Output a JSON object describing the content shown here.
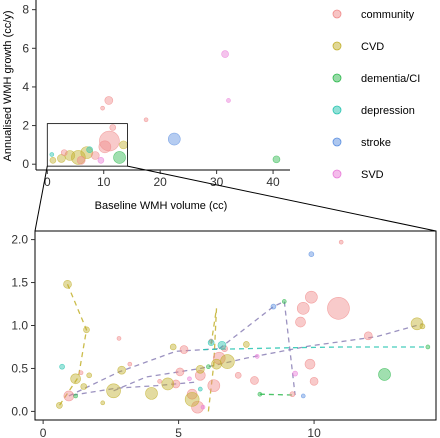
{
  "chart_data": [
    {
      "type": "scatter",
      "xlabel": "Baseline WMH volume (cc)",
      "ylabel": "Annualised WMH growth (cc/y)",
      "xlim": [
        -2,
        43
      ],
      "ylim": [
        -0.3,
        8.5
      ],
      "x_ticks": [
        "0",
        "10",
        "20",
        "30",
        "40"
      ],
      "y_ticks": [
        "0",
        "2",
        "4",
        "6",
        "8"
      ],
      "zoom_box": {
        "x": [
          0,
          14.2
        ],
        "y": [
          -0.1,
          2.1
        ]
      },
      "legend_position": "right",
      "legend": [
        {
          "name": "community",
          "color": "#f08a8a"
        },
        {
          "name": "CVD",
          "color": "#c2b02c"
        },
        {
          "name": "dementia/CI",
          "color": "#2db84d"
        },
        {
          "name": "depression",
          "color": "#26c4b0"
        },
        {
          "name": "stroke",
          "color": "#5b8fe0"
        },
        {
          "name": "SVD",
          "color": "#e97ad8"
        }
      ],
      "points": [
        {
          "x": 10.9,
          "y": 3.3,
          "r": 4,
          "g": "community"
        },
        {
          "x": 9.8,
          "y": 2.9,
          "r": 2,
          "g": "community"
        },
        {
          "x": 11.6,
          "y": 1.9,
          "r": 3,
          "g": "community"
        },
        {
          "x": 17.5,
          "y": 2.3,
          "r": 2,
          "g": "community"
        },
        {
          "x": 31.5,
          "y": 5.7,
          "r": 3.5,
          "g": "SVD"
        },
        {
          "x": 32.1,
          "y": 3.3,
          "r": 2,
          "g": "SVD"
        },
        {
          "x": 22.5,
          "y": 1.3,
          "r": 6,
          "g": "stroke"
        },
        {
          "x": 40.6,
          "y": 0.25,
          "r": 3.5,
          "g": "dementia/CI"
        },
        {
          "x": 12.8,
          "y": 0.35,
          "r": 6,
          "g": "dementia/CI"
        },
        {
          "x": 11.0,
          "y": 1.2,
          "r": 10,
          "g": "community"
        },
        {
          "x": 10.2,
          "y": 0.9,
          "r": 6,
          "g": "community"
        },
        {
          "x": 4.0,
          "y": 0.45,
          "r": 5,
          "g": "CVD"
        },
        {
          "x": 5.5,
          "y": 0.35,
          "r": 7,
          "g": "CVD"
        },
        {
          "x": 7.0,
          "y": 0.6,
          "r": 6,
          "g": "CVD"
        },
        {
          "x": 2.5,
          "y": 0.3,
          "r": 4,
          "g": "CVD"
        },
        {
          "x": 1.0,
          "y": 0.2,
          "r": 3,
          "g": "CVD"
        },
        {
          "x": 13.5,
          "y": 1.0,
          "r": 4,
          "g": "CVD"
        },
        {
          "x": 3.0,
          "y": 0.6,
          "r": 3,
          "g": "community"
        },
        {
          "x": 6.0,
          "y": 0.2,
          "r": 4,
          "g": "community"
        },
        {
          "x": 8.5,
          "y": 0.45,
          "r": 4,
          "g": "community"
        },
        {
          "x": 9.5,
          "y": 0.2,
          "r": 3,
          "g": "SVD"
        },
        {
          "x": 7.5,
          "y": 0.75,
          "r": 3,
          "g": "depression"
        },
        {
          "x": 0.8,
          "y": 0.5,
          "r": 2,
          "g": "depression"
        }
      ]
    },
    {
      "type": "scatter",
      "xlabel": "",
      "ylabel": "",
      "xlim": [
        -0.3,
        14.5
      ],
      "ylim": [
        -0.1,
        2.1
      ],
      "x_ticks": [
        "0",
        "5",
        "10"
      ],
      "y_ticks": [
        "0.0",
        "0.5",
        "1.0",
        "1.5",
        "2.0"
      ],
      "points": [
        {
          "x": 10.9,
          "y": 1.2,
          "r": 11,
          "g": "community"
        },
        {
          "x": 9.9,
          "y": 1.33,
          "r": 6,
          "g": "community"
        },
        {
          "x": 9.6,
          "y": 1.2,
          "r": 6,
          "g": "community"
        },
        {
          "x": 9.5,
          "y": 1.04,
          "r": 5,
          "g": "community"
        },
        {
          "x": 9.85,
          "y": 0.55,
          "r": 5,
          "g": "community"
        },
        {
          "x": 10.0,
          "y": 0.35,
          "r": 4,
          "g": "community"
        },
        {
          "x": 11.0,
          "y": 1.97,
          "r": 2,
          "g": "community"
        },
        {
          "x": 6.5,
          "y": 0.62,
          "r": 6,
          "g": "community"
        },
        {
          "x": 6.3,
          "y": 0.3,
          "r": 6,
          "g": "community"
        },
        {
          "x": 5.7,
          "y": 0.05,
          "r": 6,
          "g": "community"
        },
        {
          "x": 5.5,
          "y": 0.2,
          "r": 5,
          "g": "community"
        },
        {
          "x": 5.8,
          "y": 0.42,
          "r": 5,
          "g": "community"
        },
        {
          "x": 5.2,
          "y": 0.72,
          "r": 4,
          "g": "community"
        },
        {
          "x": 5.05,
          "y": 0.46,
          "r": 4,
          "g": "community"
        },
        {
          "x": 4.9,
          "y": 0.32,
          "r": 4,
          "g": "community"
        },
        {
          "x": 6.2,
          "y": 0.82,
          "r": 2,
          "g": "community"
        },
        {
          "x": 6.7,
          "y": 0.73,
          "r": 3,
          "g": "community"
        },
        {
          "x": 7.8,
          "y": 0.36,
          "r": 4,
          "g": "community"
        },
        {
          "x": 7.2,
          "y": 0.42,
          "r": 3,
          "g": "community"
        },
        {
          "x": 9.2,
          "y": 0.2,
          "r": 2.5,
          "g": "community"
        },
        {
          "x": 12.0,
          "y": 0.88,
          "r": 4,
          "g": "community"
        },
        {
          "x": 2.8,
          "y": 0.85,
          "r": 2,
          "g": "community"
        },
        {
          "x": 1.4,
          "y": 0.45,
          "r": 2,
          "g": "community"
        },
        {
          "x": 0.95,
          "y": 0.18,
          "r": 5,
          "g": "community"
        },
        {
          "x": 3.2,
          "y": 0.55,
          "r": 2,
          "g": "community"
        },
        {
          "x": 4.3,
          "y": 0.35,
          "r": 2,
          "g": "community"
        },
        {
          "x": 2.6,
          "y": 0.24,
          "r": 7,
          "g": "CVD"
        },
        {
          "x": 4.0,
          "y": 0.21,
          "r": 6,
          "g": "CVD"
        },
        {
          "x": 4.6,
          "y": 0.32,
          "r": 6,
          "g": "CVD"
        },
        {
          "x": 5.5,
          "y": 0.14,
          "r": 7,
          "g": "CVD"
        },
        {
          "x": 6.4,
          "y": 0.55,
          "r": 5,
          "g": "CVD"
        },
        {
          "x": 6.8,
          "y": 0.58,
          "r": 7,
          "g": "CVD"
        },
        {
          "x": 5.8,
          "y": 0.49,
          "r": 4,
          "g": "CVD"
        },
        {
          "x": 2.9,
          "y": 0.48,
          "r": 4,
          "g": "CVD"
        },
        {
          "x": 1.5,
          "y": 0.29,
          "r": 3,
          "g": "CVD"
        },
        {
          "x": 1.2,
          "y": 0.38,
          "r": 5,
          "g": "CVD"
        },
        {
          "x": 0.6,
          "y": 0.07,
          "r": 3,
          "g": "CVD"
        },
        {
          "x": 0.9,
          "y": 1.48,
          "r": 4,
          "g": "CVD"
        },
        {
          "x": 1.6,
          "y": 0.95,
          "r": 3,
          "g": "CVD"
        },
        {
          "x": 4.8,
          "y": 0.75,
          "r": 3,
          "g": "CVD"
        },
        {
          "x": 7.5,
          "y": 0.78,
          "r": 3,
          "g": "CVD"
        },
        {
          "x": 13.8,
          "y": 1.02,
          "r": 6,
          "g": "CVD"
        },
        {
          "x": 14.0,
          "y": 0.99,
          "r": 2.5,
          "g": "CVD"
        },
        {
          "x": 1.7,
          "y": 0.42,
          "r": 2.5,
          "g": "CVD"
        },
        {
          "x": 2.2,
          "y": 0.1,
          "r": 2,
          "g": "CVD"
        },
        {
          "x": 12.6,
          "y": 0.43,
          "r": 6,
          "g": "dementia/CI"
        },
        {
          "x": 14.2,
          "y": 0.75,
          "r": 2,
          "g": "dementia/CI"
        },
        {
          "x": 1.2,
          "y": 0.18,
          "r": 2,
          "g": "dementia/CI"
        },
        {
          "x": 6.1,
          "y": 0.52,
          "r": 2,
          "g": "dementia/CI"
        },
        {
          "x": 8.9,
          "y": 1.28,
          "r": 2,
          "g": "dementia/CI"
        },
        {
          "x": 8.0,
          "y": 0.2,
          "r": 2,
          "g": "dementia/CI"
        },
        {
          "x": 6.6,
          "y": 0.77,
          "r": 4,
          "g": "depression"
        },
        {
          "x": 6.2,
          "y": 0.8,
          "r": 3,
          "g": "depression"
        },
        {
          "x": 0.7,
          "y": 0.52,
          "r": 2.5,
          "g": "depression"
        },
        {
          "x": 5.8,
          "y": 0.26,
          "r": 2,
          "g": "depression"
        },
        {
          "x": 9.9,
          "y": 1.83,
          "r": 2.5,
          "g": "stroke"
        },
        {
          "x": 8.5,
          "y": 1.22,
          "r": 2.5,
          "g": "stroke"
        },
        {
          "x": 9.6,
          "y": 0.18,
          "r": 2,
          "g": "stroke"
        },
        {
          "x": 5.9,
          "y": 0.05,
          "r": 2,
          "g": "SVD"
        },
        {
          "x": 9.3,
          "y": 0.44,
          "r": 2.5,
          "g": "SVD"
        },
        {
          "x": 5.4,
          "y": 0.38,
          "r": 2,
          "g": "SVD"
        },
        {
          "x": 7.9,
          "y": 0.64,
          "r": 2,
          "g": "SVD"
        }
      ],
      "paths": [
        {
          "g": "CVD",
          "pts": [
            [
              0.9,
              1.48
            ],
            [
              1.6,
              0.95
            ],
            [
              1.3,
              0.4
            ],
            [
              0.6,
              0.07
            ]
          ]
        },
        {
          "g": "community",
          "pts": [
            [
              0.95,
              0.18
            ],
            [
              2.8,
              0.46
            ],
            [
              4.9,
              0.7
            ],
            [
              6.5,
              0.73
            ]
          ]
        },
        {
          "g": "community",
          "pts": [
            [
              6.5,
              0.73
            ],
            [
              8.5,
              1.22
            ],
            [
              8.9,
              1.28
            ],
            [
              9.3,
              0.19
            ]
          ]
        },
        {
          "g": "community",
          "pts": [
            [
              2.6,
              0.24
            ],
            [
              3.8,
              0.4
            ],
            [
              5.8,
              0.5
            ],
            [
              7.5,
              0.62
            ],
            [
              9.8,
              0.76
            ],
            [
              12.3,
              0.87
            ],
            [
              14.0,
              1.02
            ]
          ]
        },
        {
          "g": "CVD",
          "pts": [
            [
              6.2,
              0.78
            ],
            [
              6.4,
              1.2
            ],
            [
              6.3,
              0.55
            ],
            [
              6.1,
              0.0
            ]
          ]
        },
        {
          "g": "depression",
          "pts": [
            [
              5.9,
              0.72
            ],
            [
              9.0,
              0.74
            ],
            [
              11.0,
              0.75
            ],
            [
              14.2,
              0.75
            ]
          ]
        },
        {
          "g": "dementia/CI",
          "pts": [
            [
              8.0,
              0.2
            ],
            [
              9.3,
              0.19
            ]
          ]
        },
        {
          "g": "community",
          "pts": [
            [
              1.1,
              0.19
            ],
            [
              2.7,
              0.27
            ],
            [
              4.2,
              0.3
            ],
            [
              5.6,
              0.34
            ]
          ]
        }
      ]
    }
  ]
}
